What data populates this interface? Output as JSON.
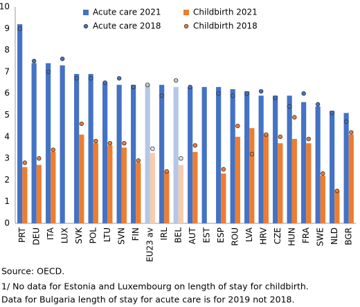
{
  "chart_data": {
    "type": "bar",
    "categories": [
      "PRT",
      "DEU",
      "ITA",
      "LUX",
      "SVK",
      "POL",
      "LTU",
      "SVN",
      "FIN",
      "EU23 av",
      "IRL",
      "BEL",
      "AUT",
      "EST",
      "ESP",
      "ROU",
      "LVA",
      "HRV",
      "CZE",
      "HUN",
      "FRA",
      "SWE",
      "NLD",
      "BGR"
    ],
    "series": [
      {
        "name": "Acute care 2021",
        "mark": "bar",
        "color": "#4472c4",
        "highlight_color": "#b4c7e7",
        "values": [
          9.2,
          7.4,
          7.4,
          7.3,
          6.9,
          6.9,
          6.5,
          6.4,
          6.4,
          6.4,
          6.4,
          6.3,
          6.3,
          6.3,
          6.3,
          6.2,
          6.1,
          5.9,
          5.9,
          5.9,
          5.6,
          5.4,
          5.2,
          5.1
        ]
      },
      {
        "name": "Childbirth 2021",
        "mark": "bar",
        "color": "#ed7d31",
        "highlight_color": "#f8cbad",
        "values": [
          2.6,
          2.7,
          3.3,
          null,
          4.1,
          3.7,
          3.6,
          3.5,
          2.8,
          3.25,
          2.4,
          2.7,
          3.3,
          null,
          2.3,
          4.0,
          4.4,
          4.1,
          3.7,
          3.9,
          3.7,
          2.2,
          1.5,
          4.1
        ]
      },
      {
        "name": "Acute care 2018",
        "mark": "dot",
        "color": "#4472c4",
        "highlight_color": "#c9c9c9",
        "values": [
          9.0,
          7.5,
          7.0,
          7.6,
          6.7,
          6.7,
          6.5,
          6.7,
          6.3,
          6.4,
          5.9,
          6.6,
          6.3,
          null,
          6.0,
          5.9,
          6.0,
          6.1,
          5.8,
          5.4,
          6.0,
          5.5,
          5.1,
          4.7
        ]
      },
      {
        "name": "Childbirth 2018",
        "mark": "dot",
        "color": "#ed7d31",
        "highlight_color": "#e6e6e6",
        "values": [
          2.8,
          3.0,
          3.4,
          null,
          4.6,
          3.8,
          3.7,
          3.7,
          2.9,
          3.45,
          2.4,
          3.0,
          3.6,
          null,
          2.5,
          4.5,
          3.2,
          4.1,
          4.0,
          4.9,
          3.9,
          2.3,
          1.5,
          4.2
        ]
      }
    ],
    "highlight_indices": [
      9,
      11
    ],
    "ylim": [
      0,
      10
    ],
    "yticks": [
      0,
      1,
      2,
      3,
      4,
      5,
      6,
      7,
      8,
      9,
      10
    ],
    "grid": false,
    "notes": [
      "Source: OECD.",
      "1/ No data for Estonia and Luxembourg on length of stay for childbirth.",
      "Data for Bulgaria length of stay for acute care is for 2019 not 2018."
    ]
  }
}
